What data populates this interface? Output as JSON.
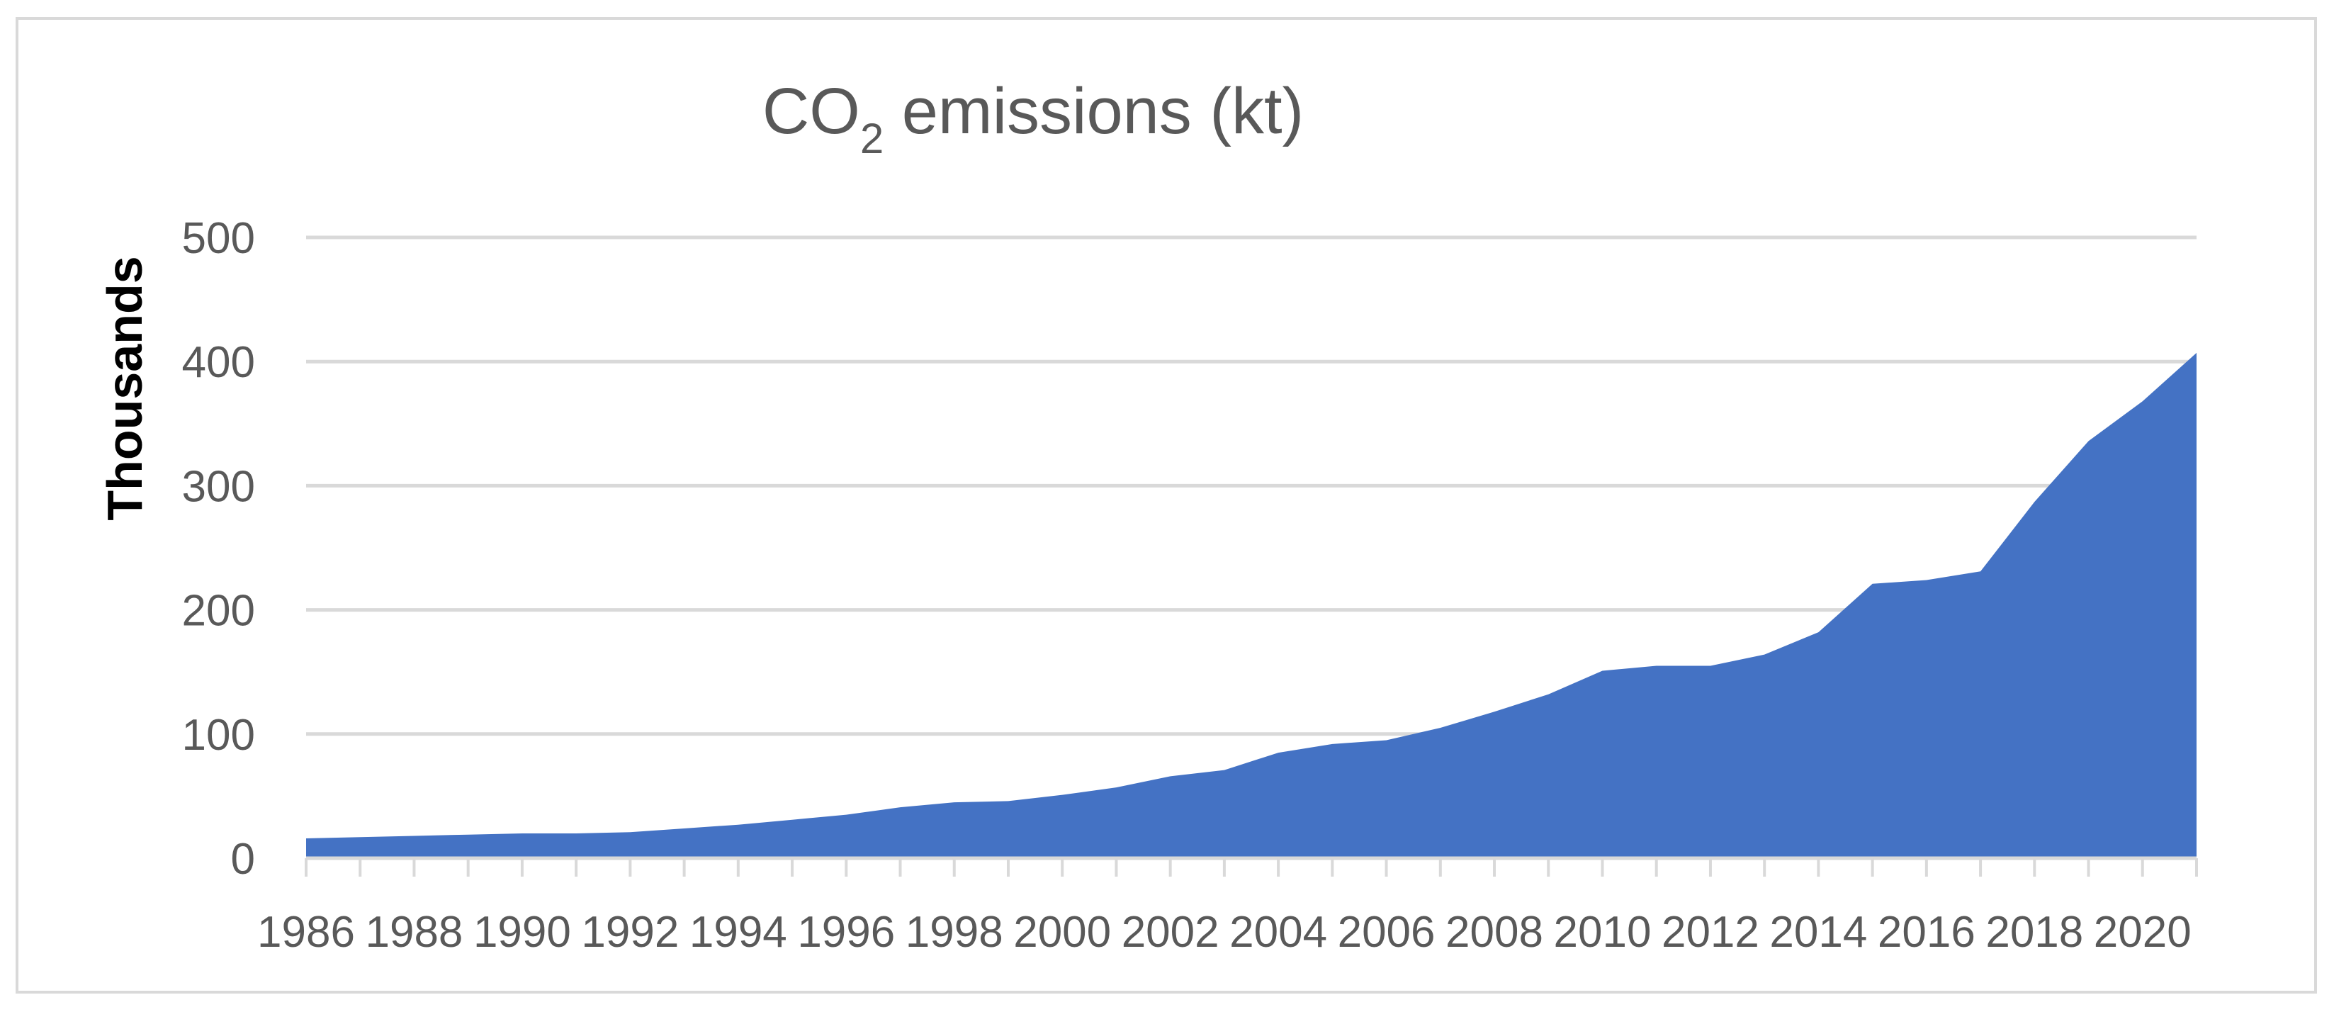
{
  "chart_data": {
    "type": "area",
    "title_main": "CO",
    "title_subscript": "2",
    "title_rest": " emissions (kt)",
    "ylabel": "Thousands",
    "xlabel": "",
    "ylim": [
      0,
      500
    ],
    "yticks": [
      "0",
      "100",
      "200",
      "300",
      "400",
      "500"
    ],
    "grid": true,
    "legend": "none",
    "x": [
      1986,
      1987,
      1988,
      1989,
      1990,
      1991,
      1992,
      1993,
      1994,
      1995,
      1996,
      1997,
      1998,
      1999,
      2000,
      2001,
      2002,
      2003,
      2004,
      2005,
      2006,
      2007,
      2008,
      2009,
      2010,
      2011,
      2012,
      2013,
      2014,
      2015,
      2016,
      2017,
      2018,
      2019,
      2020,
      2021
    ],
    "x_tick_labels": [
      "1986",
      "1988",
      "1990",
      "1992",
      "1994",
      "1996",
      "1998",
      "2000",
      "2002",
      "2004",
      "2006",
      "2008",
      "2010",
      "2012",
      "2014",
      "2016",
      "2018",
      "2020"
    ],
    "series": [
      {
        "values": [
          16,
          17,
          18,
          19,
          20,
          20,
          21,
          24,
          27,
          31,
          35,
          41,
          45,
          46,
          51,
          57,
          66,
          71,
          85,
          92,
          95,
          105,
          118,
          132,
          151,
          155,
          155,
          164,
          182,
          221,
          224,
          231,
          287,
          336,
          368,
          407
        ],
        "color": "#4472c4"
      }
    ]
  }
}
